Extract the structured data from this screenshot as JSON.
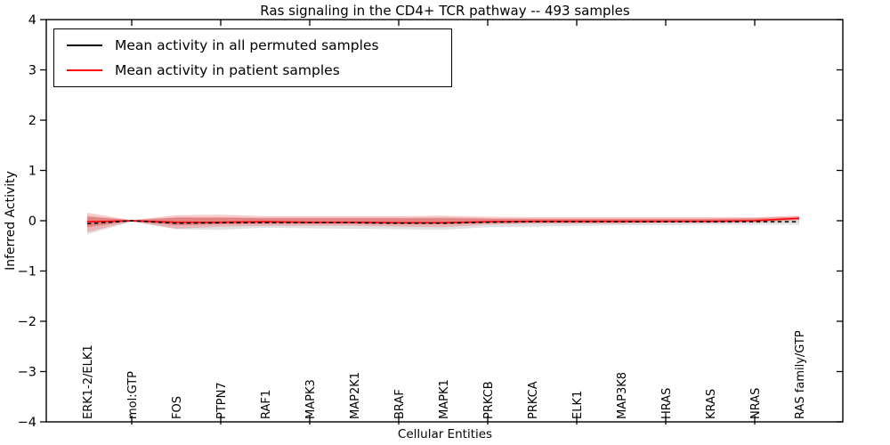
{
  "title": "Ras signaling in the CD4+ TCR pathway -- 493 samples",
  "chart_data": {
    "type": "line",
    "title": "Ras signaling in the CD4+ TCR pathway -- 493 samples",
    "xlabel": "Cellular Entities",
    "ylabel": "Inferred Activity",
    "ylim": [
      -4,
      4
    ],
    "yticks": [
      4,
      3,
      2,
      1,
      0,
      -1,
      -2,
      -3,
      -4
    ],
    "grid": false,
    "legend_position": "upper left",
    "categories": [
      "ERK1-2/ELK1",
      "mol:GTP",
      "FOS",
      "PTPN7",
      "RAF1",
      "MAPK3",
      "MAP2K1",
      "BRAF",
      "MAPK1",
      "PRKCB",
      "PRKCA",
      "ELK1",
      "MAP3K8",
      "HRAS",
      "KRAS",
      "NRAS",
      "RAS family/GTP"
    ],
    "series": [
      {
        "key": "permuted",
        "name": "Mean activity in all permuted samples",
        "color": "#000000",
        "style": "dashed",
        "values": [
          -0.06,
          0.0,
          -0.05,
          -0.04,
          -0.04,
          -0.04,
          -0.04,
          -0.05,
          -0.05,
          -0.03,
          -0.02,
          -0.02,
          -0.02,
          -0.02,
          -0.02,
          -0.02,
          -0.02
        ]
      },
      {
        "key": "patient",
        "name": "Mean activity in patient samples",
        "color": "#ff0000",
        "style": "solid",
        "values": [
          -0.02,
          0.0,
          -0.03,
          -0.03,
          -0.02,
          -0.03,
          -0.03,
          -0.04,
          -0.04,
          -0.02,
          -0.01,
          -0.01,
          -0.01,
          -0.01,
          -0.01,
          0.0,
          0.05
        ]
      }
    ],
    "bands": [
      {
        "name": "permuted-std-band",
        "color": "#aaaaaa",
        "opacity": 0.35,
        "upper": [
          0.1,
          0.01,
          0.07,
          0.07,
          0.06,
          0.06,
          0.06,
          0.06,
          0.07,
          0.05,
          0.04,
          0.04,
          0.04,
          0.04,
          0.04,
          0.04,
          0.04
        ],
        "lower": [
          -0.27,
          -0.02,
          -0.17,
          -0.18,
          -0.14,
          -0.15,
          -0.16,
          -0.17,
          -0.18,
          -0.13,
          -0.12,
          -0.1,
          -0.09,
          -0.09,
          -0.08,
          -0.08,
          -0.08
        ]
      },
      {
        "name": "patient-std-outer-band",
        "color": "#f26666",
        "opacity": 0.35,
        "upper": [
          0.16,
          0.01,
          0.11,
          0.12,
          0.09,
          0.09,
          0.09,
          0.09,
          0.1,
          0.08,
          0.07,
          0.07,
          0.07,
          0.07,
          0.07,
          0.07,
          0.1
        ],
        "lower": [
          -0.23,
          -0.01,
          -0.16,
          -0.12,
          -0.1,
          -0.1,
          -0.1,
          -0.12,
          -0.13,
          -0.08,
          -0.06,
          -0.06,
          -0.06,
          -0.05,
          -0.05,
          -0.04,
          0.01
        ]
      },
      {
        "name": "patient-std-inner-band",
        "color": "#e03333",
        "opacity": 0.4,
        "upper": [
          0.08,
          0.01,
          0.06,
          0.06,
          0.05,
          0.05,
          0.05,
          0.05,
          0.05,
          0.04,
          0.04,
          0.04,
          0.04,
          0.04,
          0.04,
          0.05,
          0.08
        ],
        "lower": [
          -0.13,
          -0.01,
          -0.09,
          -0.07,
          -0.06,
          -0.06,
          -0.06,
          -0.07,
          -0.07,
          -0.05,
          -0.04,
          -0.04,
          -0.04,
          -0.03,
          -0.03,
          -0.02,
          0.02
        ]
      }
    ]
  }
}
